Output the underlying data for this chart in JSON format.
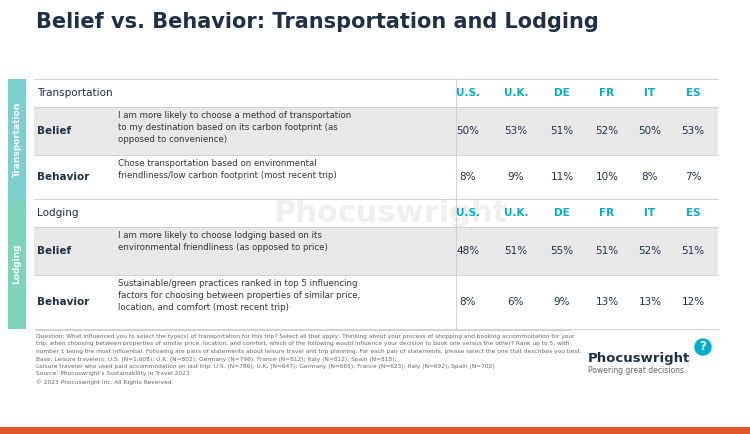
{
  "title": "Belief vs. Behavior: Transportation and Lodging",
  "title_fontsize": 15,
  "title_color": "#1e3048",
  "background_color": "#ffffff",
  "sidebar_transport_color": "#7ecece",
  "sidebar_lodging_color": "#7ed4b8",
  "header_color": "#00aecc",
  "row_alt_color": "#e8e8e8",
  "row_white_color": "#ffffff",
  "columns": [
    "U.S.",
    "U.K.",
    "DE",
    "FR",
    "IT",
    "ES"
  ],
  "sidebar_transport_label": "Transportation",
  "sidebar_lodging_label": "Lodging",
  "rows": [
    {
      "section": "transport_header",
      "label": "Transportation",
      "description": "",
      "values": [
        "U.S.",
        "U.K.",
        "DE",
        "FR",
        "IT",
        "ES"
      ],
      "bold_label": false,
      "is_header": true,
      "bg": "#ffffff"
    },
    {
      "section": "transport",
      "label": "Belief",
      "description": "I am more likely to choose a method of transportation\nto my destination based on its carbon footprint (as\nopposed to convenience)",
      "values": [
        "50%",
        "53%",
        "51%",
        "52%",
        "50%",
        "53%"
      ],
      "bold_label": true,
      "is_header": false,
      "bg": "#e8e8e8"
    },
    {
      "section": "transport",
      "label": "Behavior",
      "description": "Chose transportation based on environmental\nfriendliness/low carbon footprint (most recent trip)",
      "values": [
        "8%",
        "9%",
        "11%",
        "10%",
        "8%",
        "7%"
      ],
      "bold_label": true,
      "is_header": false,
      "bg": "#ffffff"
    },
    {
      "section": "lodging_header",
      "label": "Lodging",
      "description": "",
      "values": [
        "U.S.",
        "U.K.",
        "DE",
        "FR",
        "IT",
        "ES"
      ],
      "bold_label": false,
      "is_header": true,
      "bg": "#ffffff"
    },
    {
      "section": "lodging",
      "label": "Belief",
      "description": "I am more likely to choose lodging based on its\nenvironmental friendliness (as opposed to price)",
      "values": [
        "48%",
        "51%",
        "55%",
        "51%",
        "52%",
        "51%"
      ],
      "bold_label": true,
      "is_header": false,
      "bg": "#e8e8e8"
    },
    {
      "section": "lodging",
      "label": "Behavior",
      "description": "Sustainable/green practices ranked in top 5 influencing\nfactors for choosing between properties of similar price,\nlocation, and comfort (most recent trip)",
      "values": [
        "8%",
        "6%",
        "9%",
        "13%",
        "13%",
        "12%"
      ],
      "bold_label": true,
      "is_header": false,
      "bg": "#ffffff"
    }
  ],
  "footer_lines": [
    "Question: What influenced you to select the type(s) of transportation for this trip? Select all that apply; Thinking about your process of shopping and booking accommodation for your",
    "trip, when choosing between properties of similar price, location, and comfort, which of the following would influence your decision to book one versus the other? Rank up to 5, with",
    "number 1 being the most influential. Following are pairs of statements about leisure travel and trip planning. For each pair of statements, please select the one that describes you best.",
    "Base: Leisure travelers: U.S. (N=1,008); U.K. (N=802); Germany (N=796); France (N=812); Italy (N=812); Spain (N=818);",
    "Leisure traveler who used paid accommodation on last trip: U.S. (N=786); U.K. (N=647); Germany (N=665); France (N=623); Italy (N=692); Spain (N=702)",
    "Source: Phocuswright’s Sustainability in Travel 2023",
    "© 2023 Phocuswright Inc. All Rights Reserved."
  ],
  "phocuswright_text": "Phocuswright",
  "powering_text": "Powering great decisions.",
  "bottom_bar_color": "#e0552a",
  "watermark_text": "Phocuswright"
}
